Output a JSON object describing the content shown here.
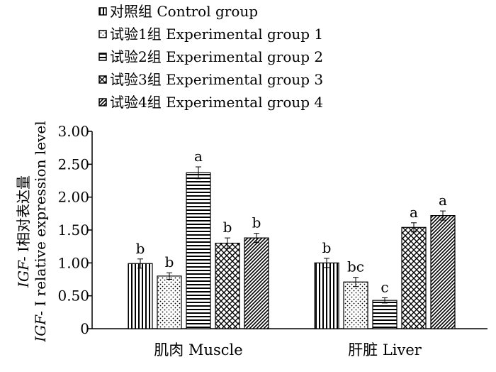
{
  "chart_data": {
    "type": "bar",
    "ylabel_line1_italic": "IGF-",
    "ylabel_line1_rest": " Ⅰ相对表达量",
    "ylabel_line2_italic": "IGF-",
    "ylabel_line2_rest": " Ⅰ relative expression level",
    "xlabel": "",
    "ylim": [
      0,
      3
    ],
    "yticks": [
      "3.00",
      "2.50",
      "2.00",
      "1.50",
      "1.00",
      "0.50",
      "0"
    ],
    "ytick_values": [
      3.0,
      2.5,
      2.0,
      1.5,
      1.0,
      0.5,
      0
    ],
    "categories": [
      "肌肉 Muscle",
      "肝脏 Liver"
    ],
    "legend_position": "top",
    "series": [
      {
        "name": "对照组 Control group",
        "pattern": "vertical-lines",
        "values": [
          0.99,
          1.0
        ],
        "errors": [
          0.07,
          0.07
        ],
        "labels": [
          "b",
          "b"
        ]
      },
      {
        "name": "试验1组 Experimental group 1",
        "pattern": "dots",
        "values": [
          0.8,
          0.71
        ],
        "errors": [
          0.05,
          0.07
        ],
        "labels": [
          "b",
          "bc"
        ]
      },
      {
        "name": "试验2组 Experimental group 2",
        "pattern": "horizontal-lines",
        "values": [
          2.37,
          0.43
        ],
        "errors": [
          0.09,
          0.04
        ],
        "labels": [
          "a",
          "c"
        ]
      },
      {
        "name": "试验3组 Experimental group 3",
        "pattern": "crosshatch",
        "values": [
          1.3,
          1.54
        ],
        "errors": [
          0.08,
          0.07
        ],
        "labels": [
          "b",
          "a"
        ]
      },
      {
        "name": "试验4组 Experimental group 4",
        "pattern": "diagonal",
        "values": [
          1.38,
          1.72
        ],
        "errors": [
          0.07,
          0.07
        ],
        "labels": [
          "b",
          "a"
        ]
      }
    ]
  }
}
